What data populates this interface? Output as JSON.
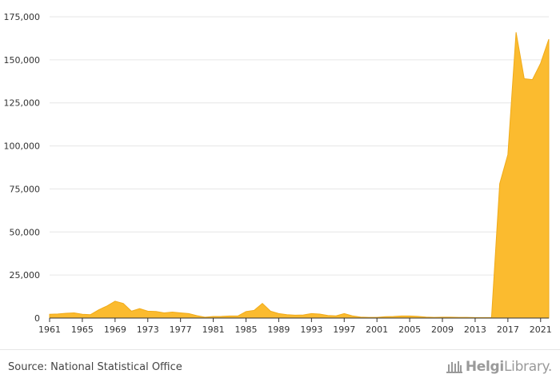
{
  "chart_data": {
    "type": "area",
    "title": "",
    "xlabel": "",
    "ylabel": "",
    "color": "#fbbb2f",
    "grid": true,
    "ylim": [
      0,
      175000
    ],
    "yticks": [
      0,
      25000,
      50000,
      75000,
      100000,
      125000,
      150000,
      175000
    ],
    "ytick_labels": [
      "0",
      "25,000",
      "50,000",
      "75,000",
      "100,000",
      "125,000",
      "150,000",
      "175,000"
    ],
    "xlim": [
      1961,
      2022
    ],
    "xticks": [
      1961,
      1965,
      1969,
      1973,
      1977,
      1981,
      1985,
      1989,
      1993,
      1997,
      2001,
      2005,
      2009,
      2013,
      2017,
      2021
    ],
    "xtick_labels": [
      "1961",
      "1965",
      "1969",
      "1973",
      "1977",
      "1981",
      "1985",
      "1989",
      "1993",
      "1997",
      "2001",
      "2005",
      "2009",
      "2013",
      "2017",
      "2021"
    ],
    "x": [
      1961,
      1962,
      1963,
      1964,
      1965,
      1966,
      1967,
      1968,
      1969,
      1970,
      1971,
      1972,
      1973,
      1974,
      1975,
      1976,
      1977,
      1978,
      1979,
      1980,
      1981,
      1982,
      1983,
      1984,
      1985,
      1986,
      1987,
      1988,
      1989,
      1990,
      1991,
      1992,
      1993,
      1994,
      1995,
      1996,
      1997,
      1998,
      1999,
      2000,
      2001,
      2002,
      2003,
      2004,
      2005,
      2006,
      2007,
      2008,
      2009,
      2010,
      2011,
      2012,
      2013,
      2014,
      2015,
      2016,
      2017,
      2018,
      2019,
      2020,
      2021,
      2022
    ],
    "values": [
      2200,
      2400,
      2800,
      3000,
      2200,
      2000,
      4800,
      7000,
      9800,
      8500,
      4000,
      5500,
      4000,
      3800,
      3000,
      3500,
      3000,
      2600,
      1400,
      500,
      900,
      1000,
      1200,
      1200,
      3800,
      4500,
      8500,
      4000,
      2600,
      2000,
      1700,
      1800,
      2600,
      2300,
      1500,
      1300,
      2600,
      1300,
      600,
      400,
      400,
      800,
      900,
      1200,
      1200,
      1000,
      600,
      400,
      500,
      500,
      400,
      400,
      300,
      300,
      300,
      78000,
      95000,
      166000,
      139000,
      138500,
      148000,
      162000
    ]
  },
  "footer": {
    "source": "Source: National Statistical Office",
    "brand_bold": "Helgi",
    "brand_light": "Library."
  }
}
